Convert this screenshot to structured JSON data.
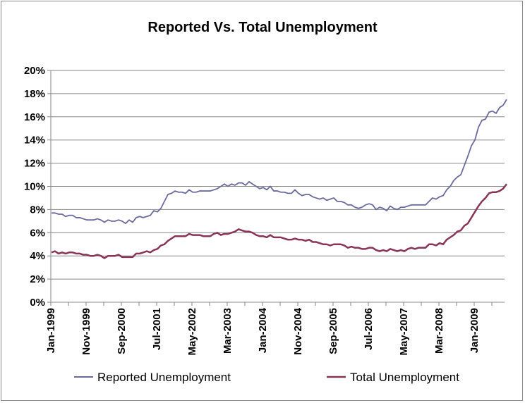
{
  "chart_data": {
    "type": "line",
    "title": "Reported Vs. Total Unemployment",
    "xlabel": "",
    "ylabel": "",
    "x_range": [
      "Jan-1999",
      "Oct-2009"
    ],
    "x_tick_labels": [
      "Jan-1999",
      "Nov-1999",
      "Sep-2000",
      "Jul-2001",
      "May-2002",
      "Mar-2003",
      "Jan-2004",
      "Nov-2004",
      "Sep-2005",
      "Jul-2006",
      "May-2007",
      "Mar-2008",
      "Jan-2009"
    ],
    "y_tick_labels": [
      "0%",
      "2%",
      "4%",
      "6%",
      "8%",
      "10%",
      "12%",
      "14%",
      "16%",
      "18%",
      "20%"
    ],
    "ylim": [
      0,
      20
    ],
    "y_unit": "%",
    "grid": "horizontal",
    "legend_position": "bottom",
    "series": [
      {
        "name": "Reported Unemployment",
        "color": "#6a6a9c",
        "values": [
          7.7,
          7.7,
          7.6,
          7.6,
          7.4,
          7.5,
          7.5,
          7.3,
          7.3,
          7.2,
          7.1,
          7.1,
          7.1,
          7.2,
          7.1,
          6.9,
          7.1,
          7.0,
          7.0,
          7.1,
          7.0,
          6.8,
          7.1,
          6.9,
          7.3,
          7.4,
          7.3,
          7.4,
          7.5,
          7.9,
          7.8,
          8.1,
          8.7,
          9.3,
          9.4,
          9.6,
          9.5,
          9.5,
          9.4,
          9.7,
          9.5,
          9.5,
          9.6,
          9.6,
          9.6,
          9.6,
          9.7,
          9.8,
          10.0,
          10.2,
          10.0,
          10.2,
          10.1,
          10.3,
          10.3,
          10.1,
          10.4,
          10.2,
          10.0,
          9.8,
          9.9,
          9.7,
          10.0,
          9.6,
          9.6,
          9.5,
          9.5,
          9.4,
          9.4,
          9.7,
          9.4,
          9.2,
          9.3,
          9.3,
          9.1,
          9.0,
          8.9,
          9.0,
          8.8,
          8.9,
          9.0,
          8.7,
          8.7,
          8.6,
          8.4,
          8.4,
          8.2,
          8.1,
          8.2,
          8.4,
          8.5,
          8.4,
          8.0,
          8.2,
          8.1,
          7.9,
          8.3,
          8.1,
          8.0,
          8.2,
          8.2,
          8.3,
          8.4,
          8.4,
          8.4,
          8.4,
          8.4,
          8.7,
          9.0,
          8.9,
          9.1,
          9.2,
          9.7,
          10.0,
          10.5,
          10.8,
          11.0,
          11.8,
          12.6,
          13.5,
          14.0,
          15.1,
          15.7,
          15.8,
          16.4,
          16.5,
          16.3,
          16.8,
          17.0,
          17.5
        ]
      },
      {
        "name": "Total Unemployment",
        "color": "#873457",
        "values": [
          4.3,
          4.4,
          4.2,
          4.3,
          4.2,
          4.3,
          4.3,
          4.2,
          4.2,
          4.1,
          4.1,
          4.0,
          4.0,
          4.1,
          4.0,
          3.8,
          4.0,
          4.0,
          4.0,
          4.1,
          3.9,
          3.9,
          3.9,
          3.9,
          4.2,
          4.2,
          4.3,
          4.4,
          4.3,
          4.5,
          4.6,
          4.9,
          5.0,
          5.3,
          5.5,
          5.7,
          5.7,
          5.7,
          5.7,
          5.9,
          5.8,
          5.8,
          5.8,
          5.7,
          5.7,
          5.7,
          5.9,
          6.0,
          5.8,
          5.9,
          5.9,
          6.0,
          6.1,
          6.3,
          6.2,
          6.1,
          6.1,
          6.0,
          5.8,
          5.7,
          5.7,
          5.6,
          5.8,
          5.6,
          5.6,
          5.6,
          5.5,
          5.4,
          5.4,
          5.5,
          5.4,
          5.4,
          5.3,
          5.4,
          5.2,
          5.2,
          5.1,
          5.0,
          5.0,
          4.9,
          5.0,
          5.0,
          5.0,
          4.9,
          4.7,
          4.8,
          4.7,
          4.7,
          4.6,
          4.6,
          4.7,
          4.7,
          4.5,
          4.4,
          4.5,
          4.4,
          4.6,
          4.5,
          4.4,
          4.5,
          4.4,
          4.6,
          4.7,
          4.6,
          4.7,
          4.7,
          4.7,
          5.0,
          5.0,
          4.9,
          5.1,
          5.0,
          5.4,
          5.6,
          5.8,
          6.1,
          6.2,
          6.6,
          6.8,
          7.3,
          7.8,
          8.3,
          8.7,
          9.0,
          9.4,
          9.5,
          9.5,
          9.6,
          9.8,
          10.2
        ]
      }
    ]
  }
}
